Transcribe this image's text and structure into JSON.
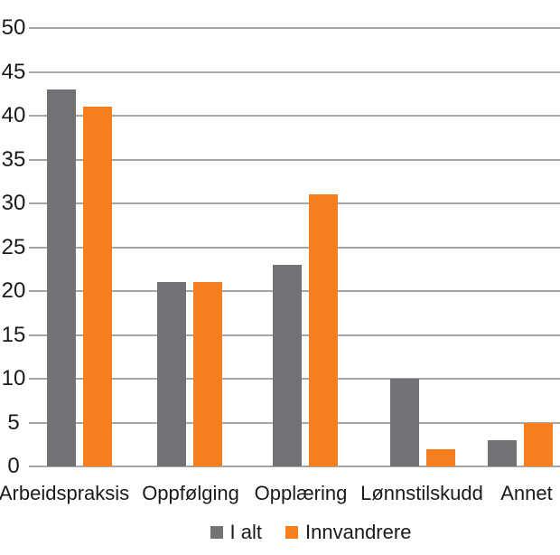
{
  "chart_data": {
    "type": "bar",
    "title": "",
    "xlabel": "",
    "ylabel": "",
    "categories": [
      "Arbeidspraksis",
      "Oppfølging",
      "Opplæring",
      "Lønnstilskudd",
      "Annet"
    ],
    "series": [
      {
        "name": "I alt",
        "color": "#717276",
        "values": [
          43,
          21,
          23,
          10,
          3
        ]
      },
      {
        "name": "Innvandrere",
        "color": "#F47E20",
        "values": [
          41,
          21,
          31,
          2,
          5
        ]
      }
    ],
    "ylim": [
      0,
      50
    ],
    "yticks": [
      0,
      5,
      10,
      15,
      20,
      25,
      30,
      35,
      40,
      45,
      50
    ],
    "grid": "horizontal",
    "gridline_color": "#A6A6A6",
    "text_color": "#1A1A1A",
    "background_color": "#FFFFFF",
    "legend_position": "bottom"
  }
}
